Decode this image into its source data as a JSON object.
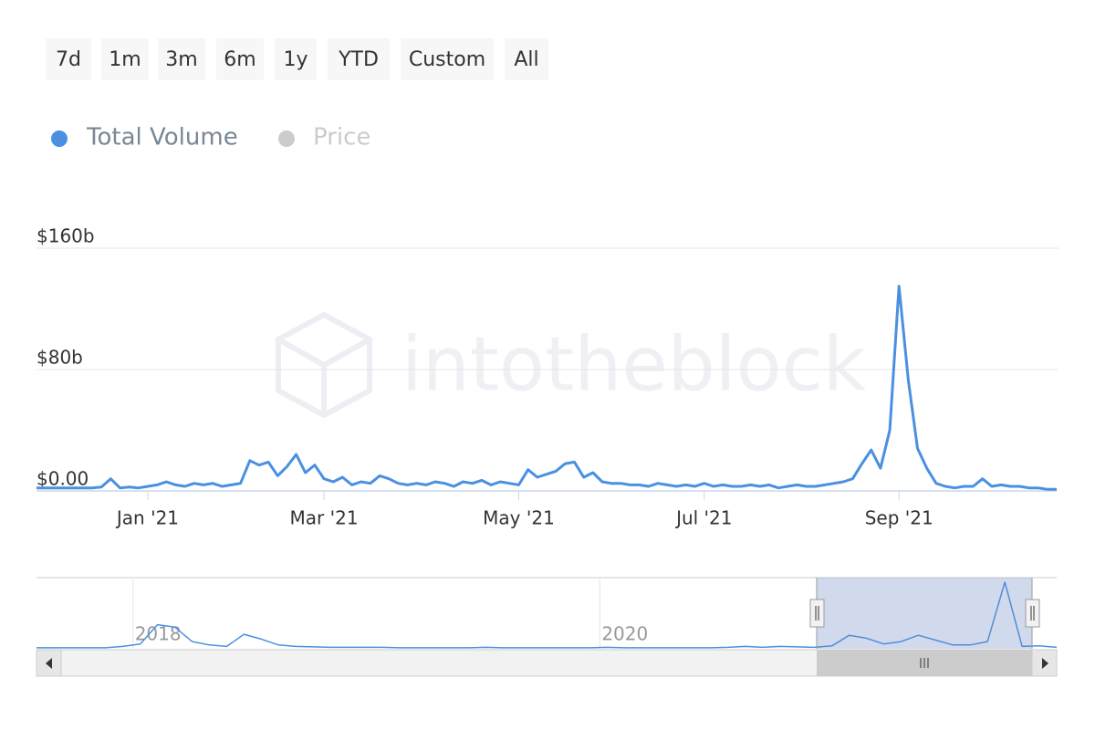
{
  "buttons": [
    "7d",
    "1m",
    "3m",
    "6m",
    "1y",
    "YTD",
    "Custom",
    "All"
  ],
  "chart_data": {
    "type": "line",
    "watermark": "intotheblock",
    "categories": [
      null,
      null,
      null,
      null,
      null,
      null,
      null,
      null,
      null,
      null,
      null,
      null,
      "Jan '21",
      null,
      null,
      null,
      null,
      null,
      null,
      null,
      null,
      null,
      null,
      null,
      null,
      null,
      null,
      null,
      null,
      null,
      null,
      "Mar '21",
      null,
      null,
      null,
      null,
      null,
      null,
      null,
      null,
      null,
      null,
      null,
      null,
      null,
      null,
      null,
      null,
      null,
      null,
      null,
      null,
      "May '21",
      null,
      null,
      null,
      null,
      null,
      null,
      null,
      null,
      null,
      null,
      null,
      null,
      null,
      null,
      null,
      null,
      null,
      null,
      null,
      "Jul '21",
      null,
      null,
      null,
      null,
      null,
      null,
      null,
      null,
      null,
      null,
      null,
      null,
      null,
      null,
      null,
      null,
      null,
      null,
      null,
      null,
      "Sep '21",
      null,
      null,
      null,
      null,
      null,
      null,
      null,
      null,
      null,
      null,
      null,
      null,
      null,
      null,
      null,
      null,
      null
    ],
    "series": [
      {
        "name": "Total Volume",
        "color": "#4a90e2",
        "values": [
          2000000000.0,
          2000000000.0,
          2000000000.0,
          2000000000.0,
          2000000000.0,
          2000000000.0,
          2000000000.0,
          2500000000.0,
          8000000000.0,
          2000000000.0,
          2500000000.0,
          2000000000.0,
          3000000000.0,
          4000000000.0,
          6000000000.0,
          4000000000.0,
          3000000000.0,
          5000000000.0,
          4000000000.0,
          5000000000.0,
          3000000000.0,
          4000000000.0,
          5000000000.0,
          20000000000.0,
          17000000000.0,
          19000000000.0,
          10000000000.0,
          16000000000.0,
          24000000000.0,
          12000000000.0,
          17000000000.0,
          8000000000.0,
          6000000000.0,
          9000000000.0,
          4000000000.0,
          6000000000.0,
          5000000000.0,
          10000000000.0,
          8000000000.0,
          5000000000.0,
          4000000000.0,
          5000000000.0,
          4000000000.0,
          6000000000.0,
          5000000000.0,
          3000000000.0,
          6000000000.0,
          5000000000.0,
          7000000000.0,
          4000000000.0,
          6000000000.0,
          5000000000.0,
          4000000000.0,
          14000000000.0,
          9000000000.0,
          11000000000.0,
          13000000000.0,
          18000000000.0,
          19000000000.0,
          9000000000.0,
          12000000000.0,
          6000000000.0,
          5000000000.0,
          5000000000.0,
          4000000000.0,
          4000000000.0,
          3000000000.0,
          5000000000.0,
          4000000000.0,
          3000000000.0,
          4000000000.0,
          3000000000.0,
          5000000000.0,
          3000000000.0,
          4000000000.0,
          3000000000.0,
          3000000000.0,
          4000000000.0,
          3000000000.0,
          4000000000.0,
          2000000000.0,
          3000000000.0,
          4000000000.0,
          3000000000.0,
          3000000000.0,
          4000000000.0,
          5000000000.0,
          6000000000.0,
          8000000000.0,
          18000000000.0,
          27000000000.0,
          15000000000.0,
          40000000000.0,
          135000000000.0,
          73000000000.0,
          28000000000.0,
          15000000000.0,
          5000000000.0,
          3000000000.0,
          2000000000.0,
          3000000000.0,
          3000000000.0,
          8000000000.0,
          3000000000.0,
          4000000000.0,
          3000000000.0,
          3000000000.0,
          2000000000.0,
          2000000000.0,
          1000000000.0,
          1000000000.0
        ]
      }
    ],
    "hidden_series": [
      {
        "name": "Price",
        "color": "#cccccc"
      }
    ],
    "ylim": [
      0,
      160000000000.0
    ],
    "yticks": [
      {
        "value": 0,
        "label": "$0.00"
      },
      {
        "value": 80000000000.0,
        "label": "$80b"
      },
      {
        "value": 160000000000.0,
        "label": "$160b"
      }
    ],
    "grid": true,
    "navigator": {
      "type": "line",
      "color": "#4a90e2",
      "categories": [
        null,
        null,
        null,
        null,
        null,
        null,
        "2018",
        null,
        null,
        null,
        null,
        null,
        null,
        null,
        null,
        null,
        null,
        null,
        null,
        null,
        null,
        null,
        null,
        null,
        null,
        null,
        null,
        null,
        null,
        null,
        null,
        null,
        null,
        "2020",
        null,
        null,
        null,
        null,
        null,
        null,
        null,
        null,
        null,
        null,
        null,
        null,
        null,
        null,
        null,
        null,
        null,
        null,
        null,
        null,
        null,
        null,
        null,
        null,
        null,
        null
      ],
      "values": [
        2000000000.0,
        2000000000.0,
        2000000000.0,
        2000000000.0,
        2000000000.0,
        5000000000.0,
        10000000000.0,
        50000000000.0,
        45000000000.0,
        15000000000.0,
        8000000000.0,
        5000000000.0,
        30000000000.0,
        20000000000.0,
        8000000000.0,
        5000000000.0,
        4000000000.0,
        3000000000.0,
        3000000000.0,
        3000000000.0,
        3000000000.0,
        2000000000.0,
        2000000000.0,
        2000000000.0,
        2000000000.0,
        2000000000.0,
        3000000000.0,
        2000000000.0,
        2000000000.0,
        2000000000.0,
        2000000000.0,
        2000000000.0,
        2000000000.0,
        3000000000.0,
        2000000000.0,
        2000000000.0,
        2000000000.0,
        2000000000.0,
        2000000000.0,
        2000000000.0,
        3000000000.0,
        5000000000.0,
        3000000000.0,
        5000000000.0,
        4000000000.0,
        3000000000.0,
        6000000000.0,
        28000000000.0,
        22000000000.0,
        10000000000.0,
        15000000000.0,
        28000000000.0,
        18000000000.0,
        8000000000.0,
        8000000000.0,
        15000000000.0,
        138000000000.0,
        5000000000.0,
        6000000000.0,
        3000000000.0
      ]
    }
  }
}
